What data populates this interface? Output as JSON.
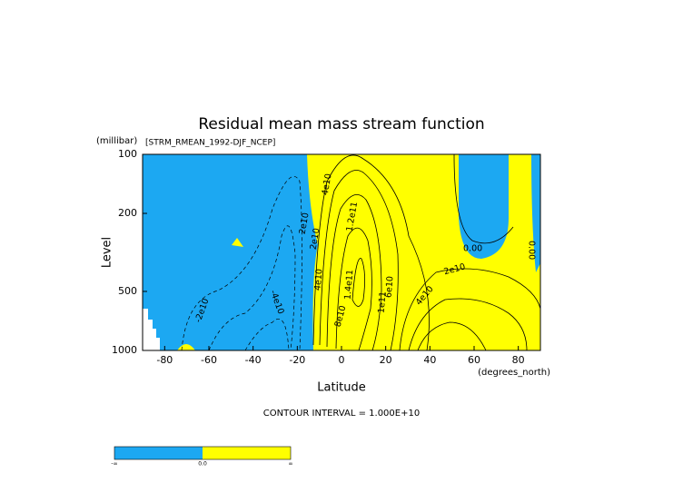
{
  "chart_data": {
    "type": "contour",
    "title": "Residual mean mass stream function",
    "subtitle": "[STRM_RMEAN_1992-DJF_NCEP]",
    "y_unit": "(millibar)",
    "ylabel": "Level",
    "xlabel": "Latitude",
    "x_unit": "(degrees_north)",
    "note": "CONTOUR INTERVAL = 1.000E+10",
    "xlim": [
      -90,
      90
    ],
    "xticks": [
      -80,
      -60,
      -40,
      -20,
      0,
      20,
      40,
      60,
      80
    ],
    "ylim": [
      1000,
      100
    ],
    "yticks": [
      100,
      200,
      500,
      1000
    ],
    "ylog": true,
    "colors": {
      "negative": "#1ca8f2",
      "positive": "#ffff00"
    },
    "contour_labels": [
      "2e10",
      "4e10",
      "2e10",
      "4e10",
      "1.2e11",
      "1.4e11",
      "0.00",
      "0.00",
      "2e10",
      "4e10",
      "6e10",
      "8e10",
      "1e11",
      "-2e10",
      "-4e10"
    ],
    "colorbar": {
      "labels": [
        "-∞",
        "0.0",
        "∞"
      ]
    }
  }
}
